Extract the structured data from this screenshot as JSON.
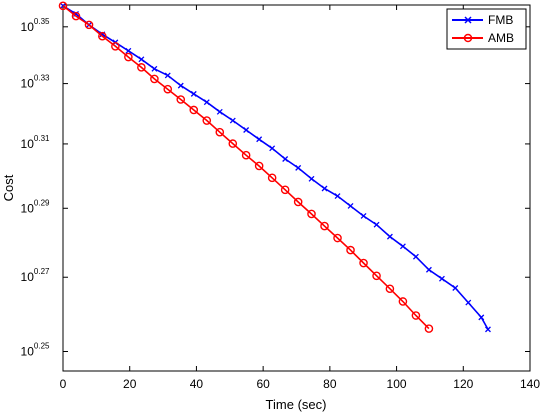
{
  "chart_data": {
    "type": "line",
    "title": "",
    "xlabel": "Time (sec)",
    "ylabel": "Cost",
    "xlim": [
      0,
      140
    ],
    "ylim": [
      0.245,
      0.358
    ],
    "y_scale": "log10",
    "y_tick_display_base": "10",
    "xticks": [
      "0",
      "20",
      "40",
      "60",
      "80",
      "100",
      "120",
      "140"
    ],
    "xtick_values": [
      0,
      20,
      40,
      60,
      80,
      100,
      120,
      140
    ],
    "yticks_exponent": [
      "0.25",
      "0.27",
      "0.29",
      "0.31",
      "0.33",
      "0.35"
    ],
    "ytick_values": [
      0.25,
      0.27,
      0.29,
      0.31,
      0.33,
      0.35
    ],
    "grid": false,
    "legend_position": "top-right",
    "series": [
      {
        "name": "FMB",
        "color": "#0000ff",
        "marker": "x",
        "x": [
          0,
          3.9,
          7.8,
          11.8,
          15.7,
          19.6,
          23.5,
          27.4,
          31.4,
          35.3,
          39.2,
          43.1,
          47.0,
          50.9,
          54.9,
          58.8,
          62.7,
          66.6,
          70.5,
          74.5,
          78.4,
          82.3,
          86.2,
          90.1,
          94.0,
          98.0,
          101.9,
          105.8,
          109.7,
          113.6,
          117.6,
          121.5,
          125.4,
          127.4
        ],
        "y": [
          0.3577,
          0.3547,
          0.3507,
          0.3473,
          0.3444,
          0.3414,
          0.3384,
          0.3351,
          0.3328,
          0.3293,
          0.3265,
          0.3237,
          0.3205,
          0.3176,
          0.3145,
          0.3115,
          0.3086,
          0.3052,
          0.3024,
          0.299,
          0.296,
          0.2937,
          0.2907,
          0.2877,
          0.2851,
          0.2816,
          0.2788,
          0.2758,
          0.2721,
          0.2696,
          0.267,
          0.263,
          0.259,
          0.2558
        ]
      },
      {
        "name": "AMB",
        "color": "#ff0000",
        "marker": "o",
        "x": [
          0,
          3.9,
          7.8,
          11.8,
          15.7,
          19.6,
          23.5,
          27.4,
          31.4,
          35.3,
          39.2,
          43.1,
          47.0,
          50.9,
          54.9,
          58.8,
          62.7,
          66.6,
          70.5,
          74.5,
          78.4,
          82.3,
          86.2,
          90.1,
          94.0,
          98.0,
          101.9,
          105.8,
          109.7
        ],
        "y": [
          0.3577,
          0.3539,
          0.3507,
          0.3466,
          0.343,
          0.3392,
          0.3356,
          0.3316,
          0.3281,
          0.3246,
          0.3211,
          0.3176,
          0.3138,
          0.3101,
          0.3064,
          0.303,
          0.2993,
          0.2956,
          0.2919,
          0.2883,
          0.2847,
          0.2812,
          0.2777,
          0.274,
          0.2704,
          0.2668,
          0.2633,
          0.2595,
          0.256
        ]
      }
    ]
  }
}
